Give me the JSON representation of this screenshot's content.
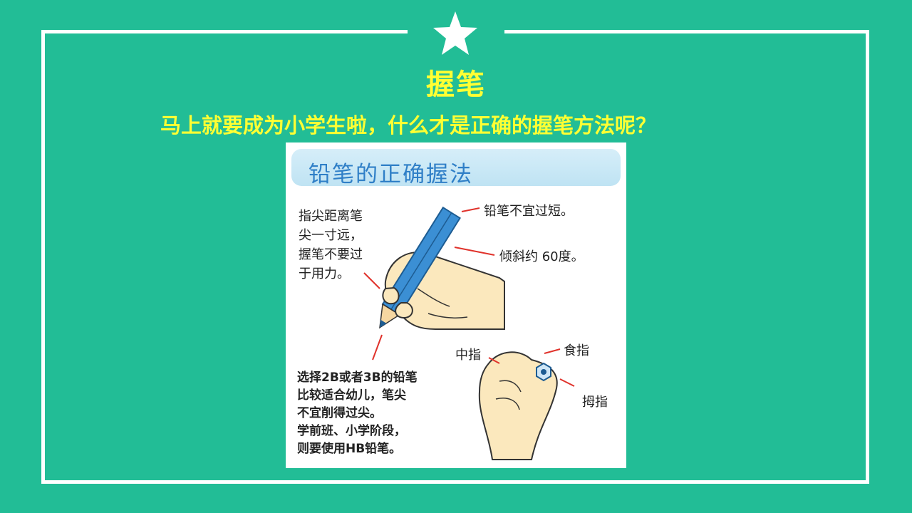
{
  "slide": {
    "title": "握笔",
    "subtitle": "马上就要成为小学生啦，什么才是正确的握笔方法呢？"
  },
  "illustration": {
    "heading": "铅笔的正确握法",
    "note_top_left": "指尖距离笔\n尖一寸远，\n握笔不要过\n于用力。",
    "label_length": "铅笔不宜过短。",
    "label_angle": "倾斜约 60度。",
    "label_middle": "中指",
    "label_index": "食指",
    "label_thumb": "拇指",
    "note_bottom": "选择2B或者3B的铅笔\n比较适合幼儿，笔尖\n不宜削得过尖。\n学前班、小学阶段，\n则要使用HB铅笔。"
  },
  "colors": {
    "background": "#22bd96",
    "title": "#ffff33",
    "heading": "#2f7fc7",
    "pencil": "#3b8fd4",
    "skin": "#fbe8bd"
  },
  "icons": [
    "star-icon"
  ]
}
